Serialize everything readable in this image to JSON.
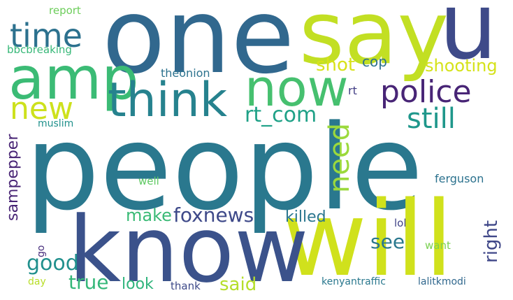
{
  "words": {
    "people": {
      "text": "people",
      "color": "#2a788e"
    },
    "one": {
      "text": "one",
      "color": "#31688e"
    },
    "say": {
      "text": "say",
      "color": "#c2df23"
    },
    "u": {
      "text": "u",
      "color": "#3e4a89"
    },
    "will": {
      "text": "will",
      "color": "#d0e11c"
    },
    "know": {
      "text": "know",
      "color": "#3b528b"
    },
    "amp": {
      "text": "amp",
      "color": "#3bbb75"
    },
    "think": {
      "text": "think",
      "color": "#26828e"
    },
    "now": {
      "text": "now",
      "color": "#46c06f"
    },
    "police": {
      "text": "police",
      "color": "#482576"
    },
    "time": {
      "text": "time",
      "color": "#2c718e"
    },
    "new": {
      "text": "new",
      "color": "#cde11d"
    },
    "still": {
      "text": "still",
      "color": "#1f978b"
    },
    "rt_com": {
      "text": "rt_com",
      "color": "#1fa187"
    },
    "need": {
      "text": "need",
      "color": "#9bd93c"
    },
    "shot": {
      "text": "shot",
      "color": "#d8e219"
    },
    "shooting": {
      "text": "shooting",
      "color": "#d5e21a"
    },
    "cop": {
      "text": "cop",
      "color": "#2d718e"
    },
    "report": {
      "text": "report",
      "color": "#6ccd5a"
    },
    "bbcbreaking": {
      "text": "bbcbreaking",
      "color": "#37b878"
    },
    "theonion": {
      "text": "theonion",
      "color": "#2c728e"
    },
    "rt": {
      "text": "rt",
      "color": "#433e85"
    },
    "muslim": {
      "text": "muslim",
      "color": "#21918c"
    },
    "sampepper": {
      "text": "sampepper",
      "color": "#482475"
    },
    "well": {
      "text": "well",
      "color": "#5ec962"
    },
    "ferguson": {
      "text": "ferguson",
      "color": "#2c728e"
    },
    "make": {
      "text": "make",
      "color": "#3aba76"
    },
    "foxnews": {
      "text": "foxnews",
      "color": "#3e4989"
    },
    "killed": {
      "text": "killed",
      "color": "#2a768e"
    },
    "right": {
      "text": "right",
      "color": "#3f4788"
    },
    "see": {
      "text": "see",
      "color": "#2a788e"
    },
    "lol": {
      "text": "lol",
      "color": "#414487"
    },
    "good": {
      "text": "good",
      "color": "#21908d"
    },
    "go": {
      "text": "go",
      "color": "#472d7b"
    },
    "want": {
      "text": "want",
      "color": "#7ad151"
    },
    "true": {
      "text": "true",
      "color": "#35b779"
    },
    "look": {
      "text": "look",
      "color": "#2fb47c"
    },
    "said": {
      "text": "said",
      "color": "#b5de2b"
    },
    "day": {
      "text": "day",
      "color": "#b8de29"
    },
    "thank": {
      "text": "thank",
      "color": "#3e4a89"
    },
    "kenyantraffic": {
      "text": "kenyantraffic",
      "color": "#2a788e"
    },
    "lalitkmodi": {
      "text": "lalitkmodi",
      "color": "#31688e"
    }
  }
}
